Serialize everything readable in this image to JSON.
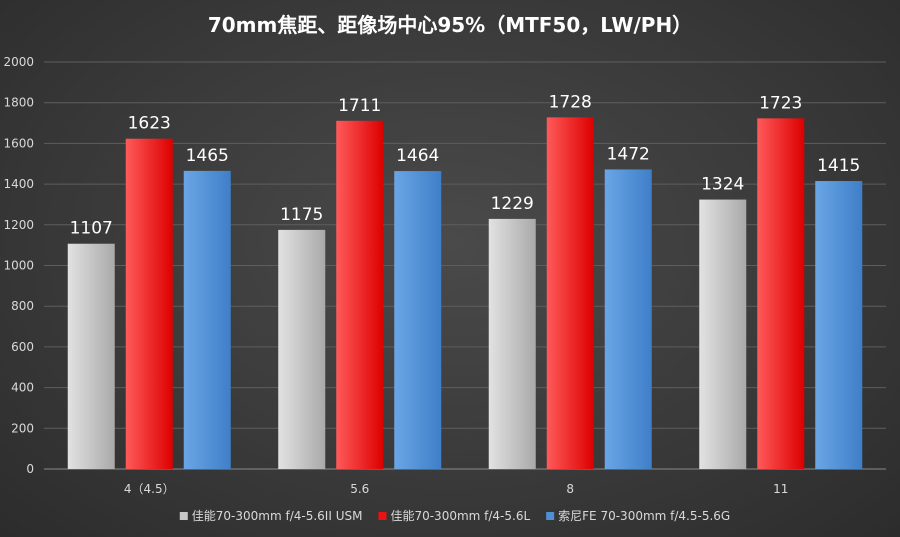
{
  "chart_data": {
    "type": "bar",
    "title": "70mm焦距、距像场中心95%（MTF50，LW/PH）",
    "categories": [
      "4（4.5）",
      "5.6",
      "8",
      "11"
    ],
    "series": [
      {
        "name": "佳能70-300mm f/4-5.6II USM",
        "color": "#c8c8c8",
        "gradient": [
          "#e2e2e2",
          "#a9a9a9"
        ],
        "values": [
          1107,
          1175,
          1229,
          1324
        ]
      },
      {
        "name": "佳能70-300mm f/4-5.6L",
        "color": "#ee1111",
        "gradient": [
          "#ff5a5a",
          "#dd0000"
        ],
        "values": [
          1623,
          1711,
          1728,
          1723
        ]
      },
      {
        "name": "索尼FE 70-300mm f/4.5-5.6G",
        "color": "#4f8fd6",
        "gradient": [
          "#6aa6e6",
          "#3f7fc8"
        ],
        "values": [
          1465,
          1464,
          1472,
          1415
        ]
      }
    ],
    "ylim": [
      0,
      2000
    ],
    "yticks": [
      0,
      200,
      400,
      600,
      800,
      1000,
      1200,
      1400,
      1600,
      1800,
      2000
    ],
    "grid": true,
    "legend": "bottom"
  }
}
